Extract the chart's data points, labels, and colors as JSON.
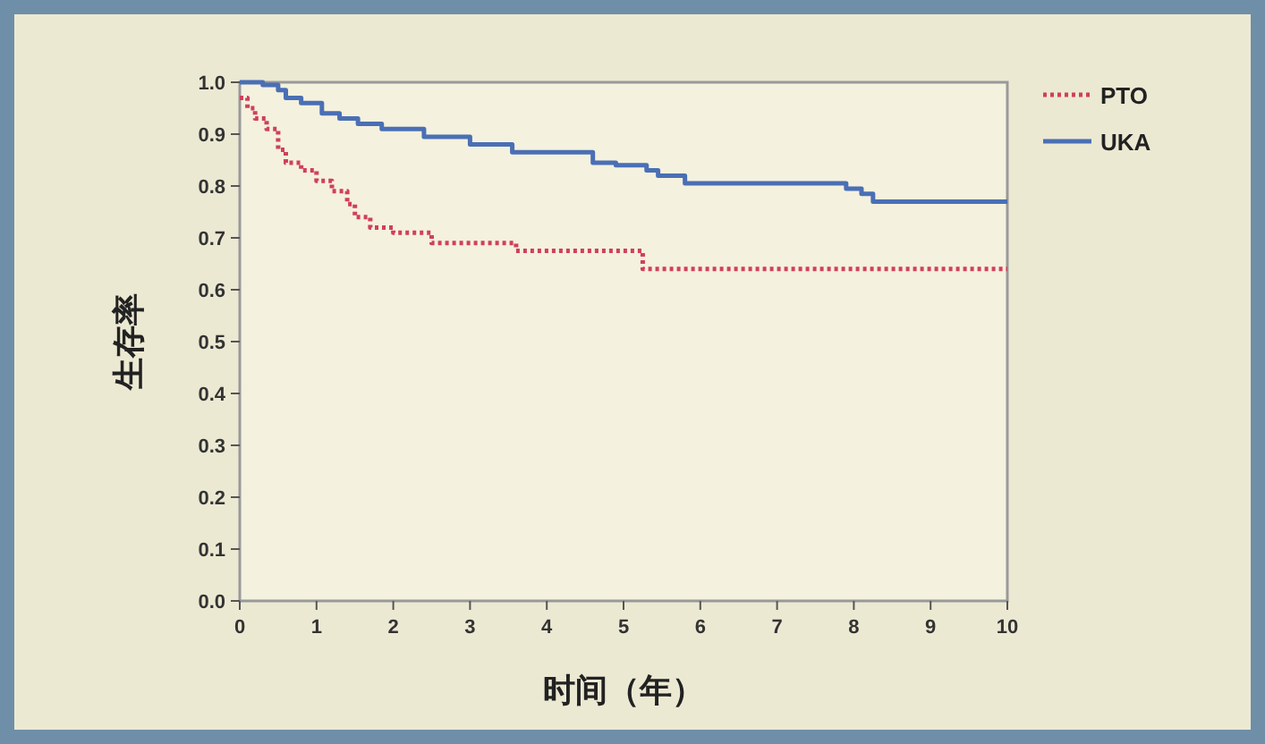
{
  "chart_data": {
    "type": "step",
    "xlabel": "时间（年）",
    "ylabel": "生存率",
    "xlim": [
      0,
      10
    ],
    "ylim": [
      0,
      1
    ],
    "xticks": [
      0,
      1,
      2,
      3,
      4,
      5,
      6,
      7,
      8,
      9,
      10
    ],
    "yticks": [
      {
        "value": 0,
        "label": "0.0"
      },
      0.1,
      0.2,
      0.3,
      0.4,
      0.5,
      0.6,
      0.7,
      0.8,
      0.9,
      {
        "value": 1,
        "label": "1.0"
      }
    ],
    "legend": "top right",
    "grid": false,
    "series": [
      {
        "name": "PTO",
        "color": "#d0405a",
        "line_style": "dotted",
        "x": [
          0,
          0.1,
          0.2,
          0.35,
          0.5,
          0.6,
          0.8,
          1.0,
          1.2,
          1.4,
          1.5,
          1.7,
          2.0,
          2.5,
          3.6,
          5.25,
          10
        ],
        "values": [
          0.97,
          0.95,
          0.93,
          0.91,
          0.87,
          0.845,
          0.83,
          0.81,
          0.79,
          0.765,
          0.74,
          0.72,
          0.71,
          0.69,
          0.675,
          0.64,
          0.64
        ]
      },
      {
        "name": "UKA",
        "color": "#4a6fb5",
        "line_style": "solid",
        "x": [
          0,
          0.3,
          0.5,
          0.6,
          0.8,
          1.07,
          1.3,
          1.54,
          1.85,
          2.4,
          3.0,
          3.55,
          4.6,
          4.9,
          5.3,
          5.45,
          5.8,
          7.9,
          8.1,
          8.25,
          10
        ],
        "values": [
          1.0,
          0.995,
          0.985,
          0.97,
          0.96,
          0.94,
          0.93,
          0.92,
          0.91,
          0.895,
          0.88,
          0.865,
          0.845,
          0.84,
          0.83,
          0.82,
          0.805,
          0.795,
          0.785,
          0.77,
          0.77
        ]
      }
    ]
  }
}
